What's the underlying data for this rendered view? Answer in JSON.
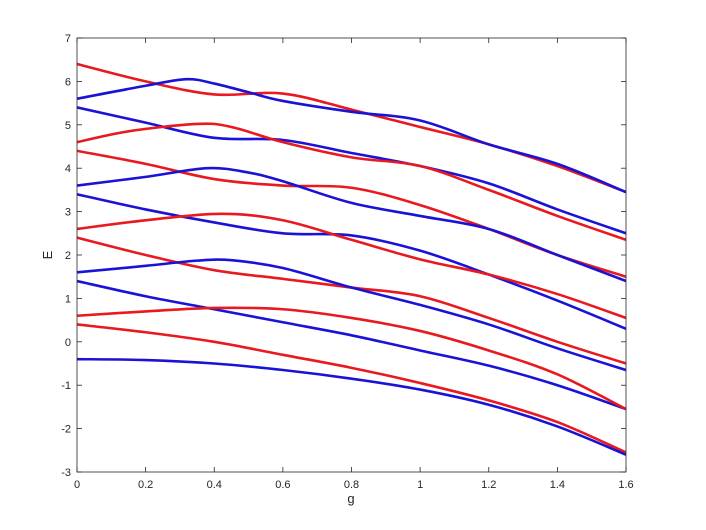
{
  "chart_data": {
    "type": "line",
    "title": "",
    "xlabel": "g",
    "ylabel": "E",
    "xlim": [
      0,
      1.6
    ],
    "ylim": [
      -3,
      7
    ],
    "xticks": [
      "0",
      "0.2",
      "0.4",
      "0.6",
      "0.8",
      "1",
      "1.2",
      "1.4",
      "1.6"
    ],
    "yticks": [
      "-3",
      "-2",
      "-1",
      "0",
      "1",
      "2",
      "3",
      "4",
      "5",
      "6",
      "7"
    ],
    "grid": false,
    "legend": "none",
    "colors": {
      "red": "#e8191f",
      "blue": "#1a13d6",
      "axis": "#262626"
    },
    "series": [
      {
        "color": "red",
        "x": [
          0,
          0.2,
          0.4,
          0.6,
          0.8,
          1.0,
          1.2,
          1.4,
          1.6
        ],
        "y": [
          6.4,
          6.0,
          5.7,
          5.72,
          5.35,
          4.95,
          4.55,
          4.05,
          3.45
        ]
      },
      {
        "color": "blue",
        "x": [
          0,
          0.2,
          0.32,
          0.4,
          0.5,
          0.6,
          0.8,
          1.0,
          1.2,
          1.4,
          1.6
        ],
        "y": [
          5.6,
          5.9,
          6.05,
          5.95,
          5.75,
          5.55,
          5.3,
          5.1,
          4.55,
          4.1,
          3.45
        ]
      },
      {
        "color": "blue",
        "x": [
          0,
          0.2,
          0.4,
          0.6,
          0.8,
          1.0,
          1.2,
          1.4,
          1.6
        ],
        "y": [
          5.4,
          5.05,
          4.7,
          4.65,
          4.35,
          4.05,
          3.65,
          3.05,
          2.5
        ]
      },
      {
        "color": "red",
        "x": [
          0,
          0.15,
          0.35,
          0.45,
          0.6,
          0.8,
          1.0,
          1.2,
          1.4,
          1.6
        ],
        "y": [
          4.6,
          4.85,
          5.02,
          4.95,
          4.6,
          4.25,
          4.05,
          3.5,
          2.9,
          2.35
        ]
      },
      {
        "color": "red",
        "x": [
          0,
          0.2,
          0.4,
          0.6,
          0.8,
          1.0,
          1.2,
          1.4,
          1.6
        ],
        "y": [
          4.4,
          4.1,
          3.75,
          3.6,
          3.55,
          3.15,
          2.6,
          2.0,
          1.5
        ]
      },
      {
        "color": "blue",
        "x": [
          0,
          0.2,
          0.38,
          0.5,
          0.6,
          0.8,
          1.0,
          1.2,
          1.4,
          1.6
        ],
        "y": [
          3.6,
          3.8,
          4.0,
          3.9,
          3.7,
          3.2,
          2.9,
          2.6,
          2.0,
          1.4
        ]
      },
      {
        "color": "blue",
        "x": [
          0,
          0.2,
          0.4,
          0.6,
          0.8,
          1.0,
          1.2,
          1.4,
          1.6
        ],
        "y": [
          3.4,
          3.05,
          2.75,
          2.5,
          2.45,
          2.1,
          1.55,
          0.95,
          0.3
        ]
      },
      {
        "color": "red",
        "x": [
          0,
          0.2,
          0.42,
          0.6,
          0.8,
          1.0,
          1.2,
          1.4,
          1.6
        ],
        "y": [
          2.6,
          2.8,
          2.95,
          2.8,
          2.35,
          1.9,
          1.55,
          1.1,
          0.55
        ]
      },
      {
        "color": "red",
        "x": [
          0,
          0.2,
          0.4,
          0.6,
          0.8,
          1.0,
          1.2,
          1.4,
          1.6
        ],
        "y": [
          2.4,
          2.0,
          1.65,
          1.45,
          1.25,
          1.05,
          0.55,
          0.0,
          -0.5
        ]
      },
      {
        "color": "blue",
        "x": [
          0,
          0.2,
          0.35,
          0.45,
          0.6,
          0.8,
          1.0,
          1.2,
          1.4,
          1.6
        ],
        "y": [
          1.6,
          1.75,
          1.87,
          1.88,
          1.7,
          1.25,
          0.85,
          0.4,
          -0.15,
          -0.65
        ]
      },
      {
        "color": "blue",
        "x": [
          0,
          0.2,
          0.4,
          0.6,
          0.8,
          1.0,
          1.2,
          1.4,
          1.6
        ],
        "y": [
          1.4,
          1.05,
          0.75,
          0.45,
          0.15,
          -0.2,
          -0.55,
          -1.0,
          -1.55
        ]
      },
      {
        "color": "red",
        "x": [
          0,
          0.2,
          0.4,
          0.6,
          0.8,
          1.0,
          1.2,
          1.4,
          1.6
        ],
        "y": [
          0.6,
          0.7,
          0.78,
          0.75,
          0.55,
          0.25,
          -0.2,
          -0.75,
          -1.55
        ]
      },
      {
        "color": "red",
        "x": [
          0,
          0.2,
          0.4,
          0.6,
          0.8,
          1.0,
          1.2,
          1.4,
          1.6
        ],
        "y": [
          0.4,
          0.22,
          0.0,
          -0.3,
          -0.6,
          -0.95,
          -1.35,
          -1.85,
          -2.55
        ]
      },
      {
        "color": "blue",
        "x": [
          0,
          0.2,
          0.4,
          0.6,
          0.8,
          1.0,
          1.2,
          1.4,
          1.6
        ],
        "y": [
          -0.4,
          -0.42,
          -0.5,
          -0.65,
          -0.85,
          -1.1,
          -1.45,
          -1.95,
          -2.6
        ]
      }
    ]
  }
}
